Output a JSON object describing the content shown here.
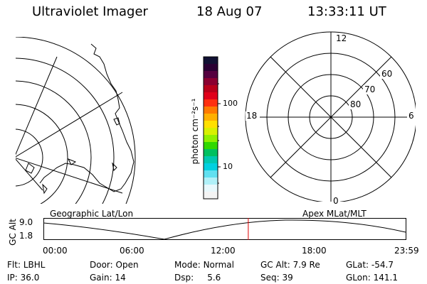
{
  "header": {
    "title": "Ultraviolet Imager",
    "date": "18 Aug 07",
    "time": "13:33:11 UT"
  },
  "colorbar": {
    "unit_label": "photon cm⁻²s⁻¹",
    "tick_high": "100",
    "tick_low": "10",
    "colors": [
      "#111133",
      "#2a0033",
      "#55003f",
      "#8a0030",
      "#b8001a",
      "#e0001a",
      "#ff3010",
      "#ff7a00",
      "#ffb000",
      "#ffe000",
      "#d8f000",
      "#90f000",
      "#30d800",
      "#00c060",
      "#00c8b0",
      "#00d0e0",
      "#60e0f0",
      "#b0f0f8",
      "#e8f8fc",
      "#f4f4f4"
    ]
  },
  "polar": {
    "mlt_top": "12",
    "mlt_left": "18",
    "mlt_right": "6",
    "mlt_bottom": "0",
    "lat_60": "60",
    "lat_70": "70",
    "lat_80": "80"
  },
  "bottom_labels": {
    "left": "Geographic Lat/Lon",
    "right": "Apex MLat/MLT"
  },
  "orbit": {
    "axis_label": "GC Alt",
    "y_max": "9.0",
    "y_min": "1.8",
    "x_ticks": [
      "00:00",
      "06:00",
      "12:00",
      "18:00",
      "23:59"
    ],
    "current_time_hours": 13.55
  },
  "info": {
    "row1": [
      {
        "label": "Flt:",
        "value": "LBHL"
      },
      {
        "label": "Door:",
        "value": "Open"
      },
      {
        "label": "Mode:",
        "value": "Normal"
      },
      {
        "label": "GC Alt:",
        "value": "7.9 Re"
      },
      {
        "label": "GLat:",
        "value": "-54.7"
      }
    ],
    "row2": [
      {
        "label": "IP:",
        "value": "36.0"
      },
      {
        "label": "Gain:",
        "value": "14"
      },
      {
        "label": "Dsp:",
        "value": "5.6"
      },
      {
        "label": "Seq:",
        "value": "39"
      },
      {
        "label": "GLon:",
        "value": "141.1"
      }
    ]
  }
}
